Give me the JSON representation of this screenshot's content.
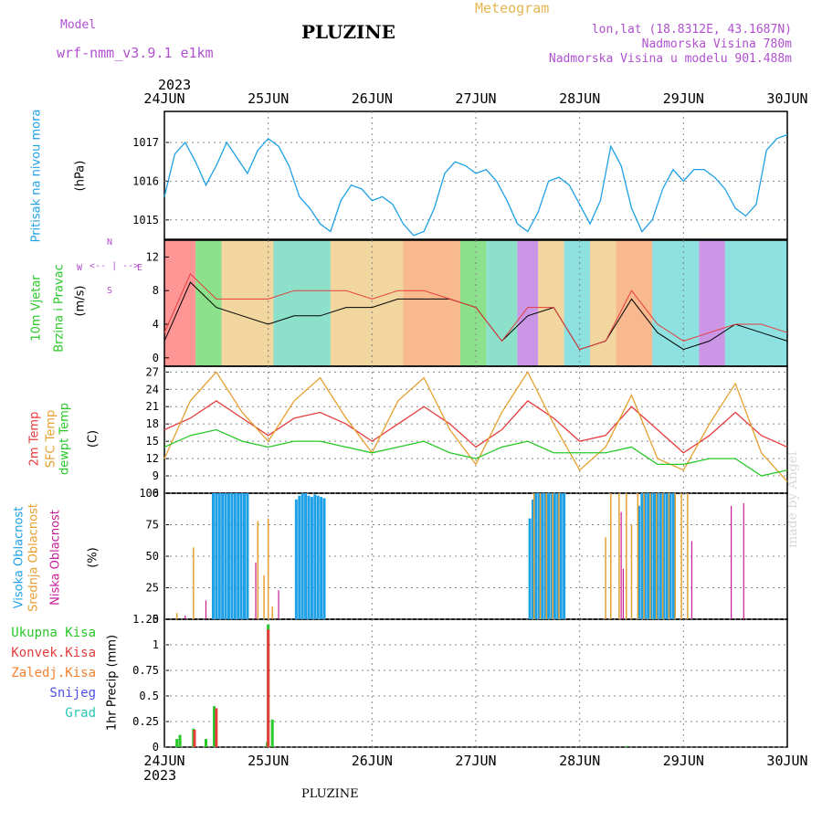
{
  "header": {
    "model_label": "Model",
    "model_name": "wrf-nmm_v3.9.1 e1km",
    "title": "PLUZINE",
    "meteogram": "Meteogram",
    "lonlat": "lon,lat (18.8312E, 43.1687N)",
    "elevation": "Nadmorska Visina 780m",
    "model_elevation": "Nadmorska Visina u modelu 901.488m",
    "year_top": "2023",
    "year_bottom": "2023",
    "footer": "PLUZINE",
    "credit": "made by Angel"
  },
  "dates": [
    "24JUN",
    "25JUN",
    "26JUN",
    "27JUN",
    "28JUN",
    "29JUN",
    "30JUN"
  ],
  "colors": {
    "pressure": "#1ea0e6",
    "temp2m": "#e63c3c",
    "sfc": "#e6a030",
    "dew": "#28c828",
    "high": "#1ea0e6",
    "mid": "#e6a030",
    "low": "#c81e96",
    "wind_label": "#28c828",
    "purple": "#b050d0"
  },
  "panel_labels": {
    "pressure": "Pritisak na nivou mora",
    "pressure_unit": "(hPa)",
    "wind1": "10m Vjetar",
    "wind2": "Brzina i Pravac",
    "wind_unit": "(m/s)",
    "compass_n": "N",
    "compass_s": "S",
    "compass_w": "W",
    "compass_e": "E",
    "temp2m": "2m Temp",
    "sfc": "SFC Temp",
    "dew": "dewpt Temp",
    "temp_unit": "(C)",
    "high": "Visoka Oblacnost",
    "mid": "Srednja Oblacnost",
    "low": "Niska Oblacnost",
    "cloud_unit": "(%)",
    "precip_unit": "1hr Precip (mm)",
    "precip_legend": [
      "Ukupna Kisa",
      "Konvek.Kisa",
      "Zaledj.Kisa",
      "Snijeg",
      "Grad"
    ],
    "precip_colors": [
      "#28c828",
      "#e63c3c",
      "#f08030",
      "#5050e6",
      "#28c8b4"
    ]
  },
  "chart_data": [
    {
      "type": "line",
      "title": "",
      "ylabel": "Pritisak na nivou mora (hPa)",
      "ylim": [
        1014.5,
        1017.8
      ],
      "yticks": [
        1015,
        1016,
        1017
      ],
      "x_days": [
        0,
        0.1,
        0.2,
        0.3,
        0.4,
        0.5,
        0.6,
        0.7,
        0.8,
        0.9,
        1.0,
        1.1,
        1.2,
        1.3,
        1.4,
        1.5,
        1.6,
        1.7,
        1.8,
        1.9,
        2.0,
        2.1,
        2.2,
        2.3,
        2.4,
        2.5,
        2.6,
        2.7,
        2.8,
        2.9,
        3.0,
        3.1,
        3.2,
        3.3,
        3.4,
        3.5,
        3.6,
        3.7,
        3.8,
        3.9,
        4.0,
        4.1,
        4.2,
        4.3,
        4.4,
        4.5,
        4.6,
        4.7,
        4.8,
        4.9,
        5.0,
        5.1,
        5.2,
        5.3,
        5.4,
        5.5,
        5.6,
        5.7,
        5.8,
        5.9,
        6.0
      ],
      "series": [
        {
          "values": [
            1015.6,
            1016.7,
            1017.0,
            1016.5,
            1015.9,
            1016.4,
            1017.0,
            1016.6,
            1016.2,
            1016.8,
            1017.1,
            1016.9,
            1016.4,
            1015.6,
            1015.3,
            1014.9,
            1014.7,
            1015.5,
            1015.9,
            1015.8,
            1015.5,
            1015.6,
            1015.4,
            1014.9,
            1014.6,
            1014.7,
            1015.3,
            1016.2,
            1016.5,
            1016.4,
            1016.2,
            1016.3,
            1016.0,
            1015.5,
            1014.9,
            1014.7,
            1015.2,
            1016.0,
            1016.1,
            1015.9,
            1015.4,
            1014.9,
            1015.5,
            1016.9,
            1016.4,
            1015.3,
            1014.7,
            1015.0,
            1015.8,
            1016.3,
            1016.0,
            1016.3,
            1016.3,
            1016.1,
            1015.8,
            1015.3,
            1015.1,
            1015.4,
            1016.8,
            1017.1,
            1017.2
          ]
        }
      ]
    },
    {
      "type": "line",
      "title": "",
      "ylabel": "10m Vjetar Brzina i Pravac (m/s)",
      "ylim": [
        -1,
        14
      ],
      "yticks": [
        0,
        4,
        8,
        12
      ],
      "x_days": [
        0,
        0.25,
        0.5,
        0.75,
        1.0,
        1.25,
        1.5,
        1.75,
        2.0,
        2.25,
        2.5,
        2.75,
        3.0,
        3.25,
        3.5,
        3.75,
        4.0,
        4.25,
        4.5,
        4.75,
        5.0,
        5.25,
        5.5,
        5.75,
        6.0
      ],
      "series": [
        {
          "values": [
            2,
            9,
            6,
            5,
            4,
            5,
            5,
            6,
            6,
            7,
            7,
            7,
            6,
            2,
            5,
            6,
            1,
            2,
            7,
            3,
            1,
            2,
            4,
            3,
            2
          ]
        },
        {
          "values": [
            3,
            10,
            7,
            7,
            7,
            8,
            8,
            8,
            7,
            8,
            8,
            7,
            6,
            2,
            6,
            6,
            1,
            2,
            8,
            4,
            2,
            3,
            4,
            4,
            3
          ]
        }
      ]
    },
    {
      "type": "line",
      "title": "",
      "ylabel": "Temp (C)",
      "ylim": [
        6,
        28
      ],
      "yticks": [
        6,
        9,
        12,
        15,
        18,
        21,
        24,
        27
      ],
      "x_days": [
        0,
        0.25,
        0.5,
        0.75,
        1.0,
        1.25,
        1.5,
        1.75,
        2.0,
        2.25,
        2.5,
        2.75,
        3.0,
        3.25,
        3.5,
        3.75,
        4.0,
        4.25,
        4.5,
        4.75,
        5.0,
        5.25,
        5.5,
        5.75,
        6.0
      ],
      "series": [
        {
          "name": "2m Temp",
          "values": [
            17,
            19,
            22,
            19,
            16,
            19,
            20,
            18,
            15,
            18,
            21,
            18,
            14,
            17,
            22,
            19,
            15,
            16,
            21,
            17,
            13,
            16,
            20,
            16,
            14
          ]
        },
        {
          "name": "SFC Temp",
          "values": [
            12,
            22,
            27,
            20,
            15,
            22,
            26,
            19,
            13,
            22,
            26,
            17,
            11,
            20,
            27,
            18,
            10,
            14,
            23,
            12,
            10,
            18,
            25,
            13,
            8
          ]
        },
        {
          "name": "dewpt Temp",
          "values": [
            14,
            16,
            17,
            15,
            14,
            15,
            15,
            14,
            13,
            14,
            15,
            13,
            12,
            14,
            15,
            13,
            13,
            13,
            14,
            11,
            11,
            12,
            12,
            9,
            10
          ]
        }
      ]
    },
    {
      "type": "bar",
      "title": "",
      "ylabel": "Oblacnost (%)",
      "ylim": [
        0,
        100
      ],
      "yticks": [
        0,
        25,
        50,
        75,
        100
      ],
      "series": [
        {
          "name": "Visoka Oblacnost",
          "x_days": [
            0.47,
            0.5,
            0.53,
            0.56,
            0.59,
            0.62,
            0.65,
            0.68,
            0.71,
            0.74,
            0.77,
            0.8,
            1.27,
            1.3,
            1.33,
            1.36,
            1.39,
            1.42,
            1.45,
            1.48,
            1.51,
            1.54,
            3.52,
            3.55,
            3.58,
            3.61,
            3.64,
            3.67,
            3.7,
            3.73,
            3.76,
            3.79,
            3.82,
            3.85,
            4.57,
            4.6,
            4.63,
            4.66,
            4.69,
            4.72,
            4.75,
            4.78,
            4.81,
            4.84,
            4.87,
            4.9
          ],
          "values": [
            100,
            100,
            100,
            100,
            100,
            100,
            100,
            100,
            100,
            100,
            100,
            100,
            95,
            98,
            100,
            100,
            98,
            97,
            99,
            98,
            97,
            96,
            80,
            95,
            100,
            100,
            100,
            100,
            100,
            100,
            100,
            100,
            100,
            100,
            90,
            100,
            100,
            100,
            100,
            100,
            100,
            100,
            100,
            100,
            100,
            100
          ]
        },
        {
          "name": "Srednja Oblacnost",
          "x_days": [
            0.12,
            0.28,
            0.9,
            0.96,
            1.0,
            1.04,
            3.56,
            3.62,
            3.68,
            3.74,
            3.8,
            4.25,
            4.3,
            4.38,
            4.45,
            4.5,
            4.56,
            4.62,
            4.68,
            4.74,
            4.8,
            4.86,
            4.92,
            4.98,
            5.04
          ],
          "values": [
            5,
            57,
            78,
            35,
            80,
            10,
            100,
            100,
            100,
            100,
            100,
            65,
            100,
            100,
            100,
            75,
            100,
            100,
            100,
            100,
            100,
            100,
            100,
            100,
            100
          ]
        },
        {
          "name": "Niska Oblacnost",
          "x_days": [
            0.2,
            0.4,
            0.88,
            1.1,
            4.4,
            4.42,
            5.08,
            5.46,
            5.58
          ],
          "values": [
            3,
            15,
            45,
            23,
            85,
            40,
            62,
            90,
            92
          ]
        }
      ]
    },
    {
      "type": "bar",
      "title": "",
      "ylabel": "1hr Precip (mm)",
      "ylim": [
        0,
        1.25
      ],
      "yticks": [
        0,
        0.25,
        0.5,
        0.75,
        1,
        1.25
      ],
      "series": [
        {
          "name": "Ukupna Kisa",
          "x_days": [
            0.12,
            0.15,
            0.28,
            0.4,
            0.48,
            0.49,
            0.99,
            1.0,
            1.04,
            4.45
          ],
          "values": [
            0.08,
            0.12,
            0.18,
            0.08,
            0.4,
            0.38,
            0.05,
            1.2,
            0.27,
            0.01
          ]
        },
        {
          "name": "Konvek.Kisa",
          "x_days": [
            0.29,
            0.5,
            1.0
          ],
          "values": [
            0.17,
            0.38,
            1.15
          ]
        }
      ]
    }
  ]
}
